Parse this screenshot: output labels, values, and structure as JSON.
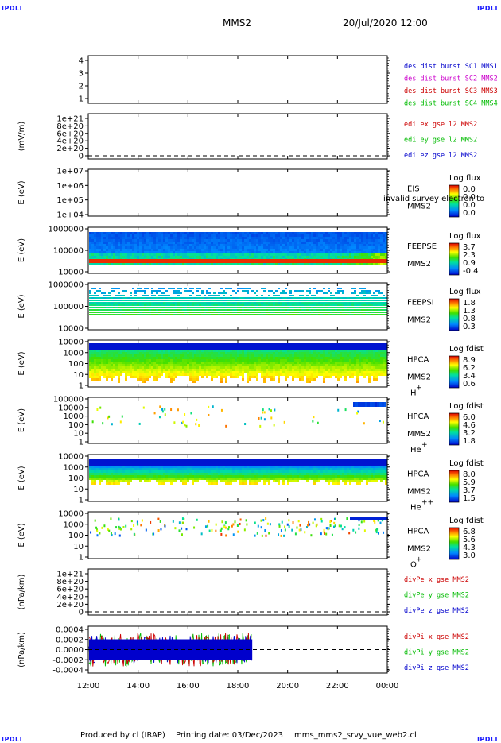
{
  "header": {
    "corner_tl": "IPDLI",
    "corner_tr": "IPDLI",
    "corner_bl": "IPDLI",
    "corner_br": "IPDLI",
    "spacecraft": "MMS2",
    "datetime": "20/Jul/2020 12:00"
  },
  "footer": {
    "produced_by": "Produced by cl (IRAP)",
    "printing_date": "Printing date: 03/Dec/2023",
    "filename": "mms_mms2_srvy_vue_web2.cl"
  },
  "chart_data": [
    {
      "type": "line",
      "panel": "des-dist-burst",
      "ylabel": "",
      "ylim": [
        0.5,
        4.5
      ],
      "yticks": [
        "1",
        "2",
        "3",
        "4"
      ],
      "legend": [
        {
          "text": "des dist burst SC1 MMS1",
          "color": "#0000cc"
        },
        {
          "text": "des dist burst SC2 MMS2",
          "color": "#cc00cc"
        },
        {
          "text": "des dist burst SC3 MMS3",
          "color": "#cc0000"
        },
        {
          "text": "des dist burst SC4 MMS4",
          "color": "#00bb00"
        }
      ],
      "series": []
    },
    {
      "type": "line",
      "panel": "edi-e-gse",
      "ylabel": "(mV/m)",
      "yticks": [
        "0",
        "2e+20",
        "4e+20",
        "6e+20",
        "8e+20",
        "1e+21"
      ],
      "ylim": [
        0,
        1e+21
      ],
      "zero_line": true,
      "legend": [
        {
          "text": "edi ex gse l2 MMS2",
          "color": "#cc0000"
        },
        {
          "text": "edi ey gse l2 MMS2",
          "color": "#00bb00"
        },
        {
          "text": "edi ez gse l2 MMS2",
          "color": "#0000cc"
        }
      ],
      "series": []
    },
    {
      "type": "heatmap",
      "panel": "eis",
      "ylabel": "E (eV)",
      "yscale": "log",
      "yticks": [
        "1e+04",
        "1e+05",
        "1e+06",
        "1e+07"
      ],
      "instrument": "EIS",
      "spacecraft": "MMS2",
      "overlay_text": "invalid survey electron to",
      "colorbar": {
        "label": "Log flux",
        "ticks": [
          "0.0",
          "0.0",
          "0.0",
          "0.0"
        ]
      },
      "filled": false
    },
    {
      "type": "heatmap",
      "panel": "feepse",
      "ylabel": "E (eV)",
      "yscale": "log",
      "yticks": [
        "10000",
        "100000",
        "1000000"
      ],
      "instrument": "FEEPSE",
      "spacecraft": "MMS2",
      "colorbar": {
        "label": "Log flux",
        "ticks": [
          "3.7",
          "2.3",
          "0.9",
          "-0.4"
        ]
      },
      "filled": true
    },
    {
      "type": "heatmap",
      "panel": "feepsi",
      "ylabel": "E (eV)",
      "yscale": "log",
      "yticks": [
        "10000",
        "100000",
        "1000000"
      ],
      "instrument": "FEEPSI",
      "spacecraft": "MMS2",
      "colorbar": {
        "label": "Log flux",
        "ticks": [
          "1.8",
          "1.3",
          "0.8",
          "0.3"
        ]
      },
      "filled": true
    },
    {
      "type": "heatmap",
      "panel": "hpca-h",
      "ylabel": "E (eV)",
      "yscale": "log",
      "yticks": [
        "1",
        "10",
        "100",
        "1000",
        "10000"
      ],
      "instrument": "HPCA",
      "spacecraft": "MMS2",
      "species": "H",
      "charge": "+",
      "colorbar": {
        "label": "Log fdist",
        "ticks": [
          "8.9",
          "6.2",
          "3.4",
          "0.6"
        ]
      },
      "filled": true
    },
    {
      "type": "heatmap",
      "panel": "hpca-he",
      "ylabel": "E (eV)",
      "yscale": "log",
      "yticks": [
        "1",
        "10",
        "100",
        "1000",
        "10000",
        "100000"
      ],
      "instrument": "HPCA",
      "spacecraft": "MMS2",
      "species": "He",
      "charge": "+",
      "colorbar": {
        "label": "Log fdist",
        "ticks": [
          "6.0",
          "4.6",
          "3.2",
          "1.8"
        ]
      },
      "filled": true
    },
    {
      "type": "heatmap",
      "panel": "hpca-hepp",
      "ylabel": "E (eV)",
      "yscale": "log",
      "yticks": [
        "1",
        "10",
        "100",
        "1000",
        "10000"
      ],
      "instrument": "HPCA",
      "spacecraft": "MMS2",
      "species": "He",
      "charge": "++",
      "colorbar": {
        "label": "Log fdist",
        "ticks": [
          "8.0",
          "5.9",
          "3.7",
          "1.5"
        ]
      },
      "filled": true
    },
    {
      "type": "heatmap",
      "panel": "hpca-o",
      "ylabel": "E (eV)",
      "yscale": "log",
      "yticks": [
        "1",
        "10",
        "100",
        "1000",
        "10000"
      ],
      "instrument": "HPCA",
      "spacecraft": "MMS2",
      "species": "O",
      "charge": "+",
      "colorbar": {
        "label": "Log fdist",
        "ticks": [
          "6.8",
          "5.6",
          "4.3",
          "3.0"
        ]
      },
      "filled": true
    },
    {
      "type": "line",
      "panel": "divpe",
      "ylabel": "(nPa/km)",
      "yticks": [
        "0",
        "2e+20",
        "4e+20",
        "6e+20",
        "8e+20",
        "1e+21"
      ],
      "ylim": [
        0,
        1e+21
      ],
      "zero_line": true,
      "legend": [
        {
          "text": "divPe x gse MMS2",
          "color": "#cc0000"
        },
        {
          "text": "divPe y gse MMS2",
          "color": "#00bb00"
        },
        {
          "text": "divPe z gse MMS2",
          "color": "#0000cc"
        }
      ],
      "series": []
    },
    {
      "type": "line",
      "panel": "divpi",
      "ylabel": "(nPa/km)",
      "yticks": [
        "-0.0004",
        "-0.0002",
        "0.0000",
        "0.0002",
        "0.0004"
      ],
      "ylim": [
        -0.0005,
        0.0005
      ],
      "zero_line": true,
      "data_end": "18:35",
      "amplitude": 0.0004,
      "legend": [
        {
          "text": "divPi x gse MMS2",
          "color": "#cc0000"
        },
        {
          "text": "divPi y gse MMS2",
          "color": "#00bb00"
        },
        {
          "text": "divPi z gse MMS2",
          "color": "#0000cc"
        }
      ],
      "series": []
    }
  ],
  "xaxis": {
    "ticks": [
      "12:00",
      "14:00",
      "16:00",
      "18:00",
      "20:00",
      "22:00",
      "00:00"
    ],
    "range": [
      "12:00",
      "00:00"
    ]
  }
}
